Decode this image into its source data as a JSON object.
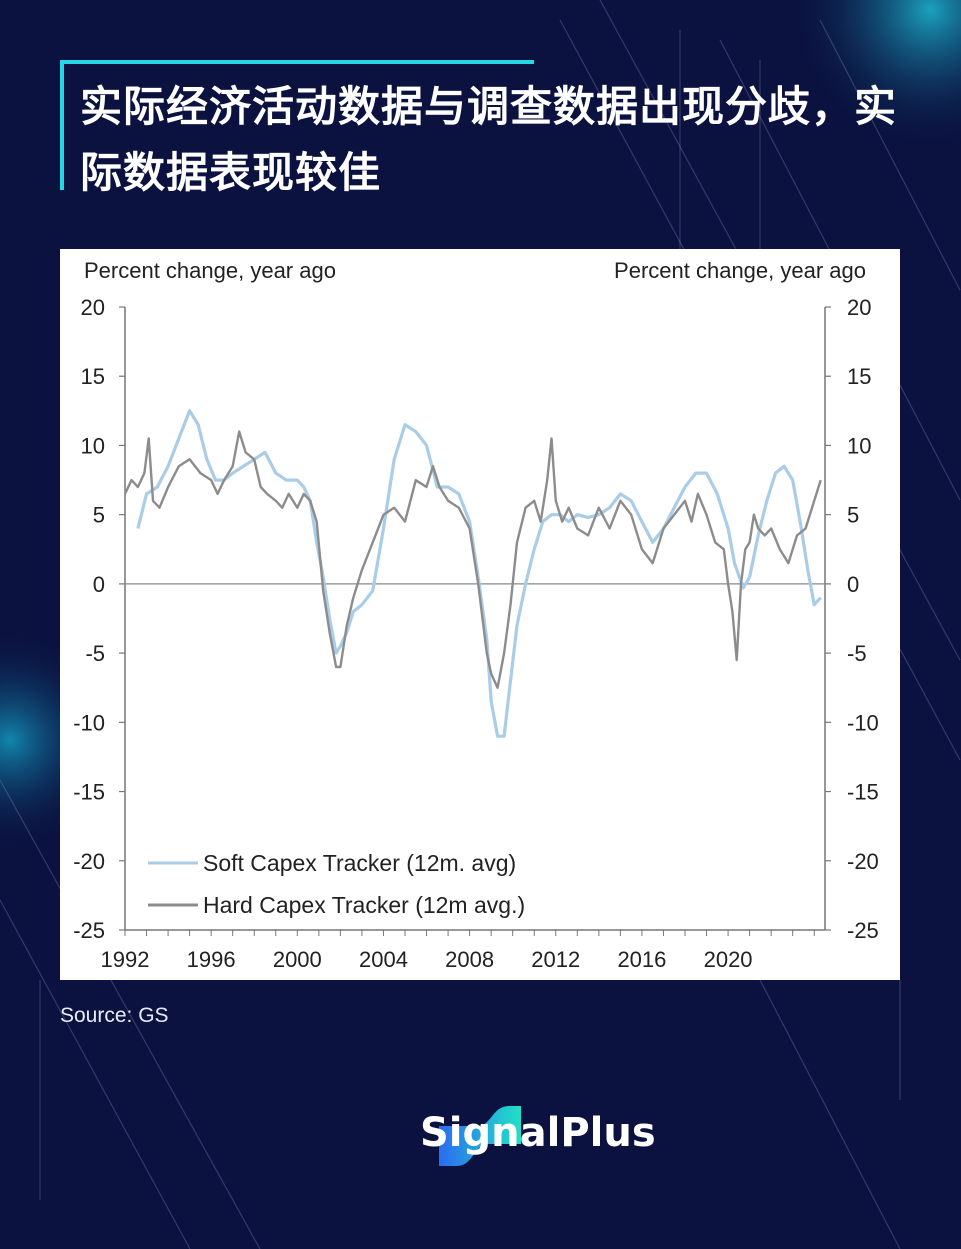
{
  "title": "实际经济活动数据与调查数据出现分歧，实际数据表现较佳",
  "source": "Source: GS",
  "brand": {
    "name": "SignalPlus",
    "accent": "#25d6e6"
  },
  "colors": {
    "soft": "#a9cde8",
    "hard": "#8c8c8c",
    "zero_line": "#888888",
    "axis": "#777777"
  },
  "chart_data": {
    "type": "line",
    "title": "",
    "ylabel_left": "Percent change, year ago",
    "ylabel_right": "Percent change, year ago",
    "ylim": [
      -25,
      20
    ],
    "yticks": [
      20,
      15,
      10,
      5,
      0,
      -5,
      -10,
      -15,
      -20,
      -25
    ],
    "ytick_labels": [
      "20",
      "15",
      "10",
      "5",
      "0",
      "-5",
      "-10",
      "-15",
      "-20",
      "-25"
    ],
    "xlim": [
      1992,
      2024.5
    ],
    "xticks": [
      1992,
      1996,
      2000,
      2004,
      2008,
      2012,
      2016,
      2020
    ],
    "xtick_labels": [
      "1992",
      "1996",
      "2000",
      "2004",
      "2008",
      "2012",
      "2016",
      "2020"
    ],
    "series": [
      {
        "name": "Soft Capex Tracker (12m. avg)",
        "label": "Soft Capex Tracker (12m. avg)",
        "color": "#a9cde8",
        "x": [
          1992.6,
          1993.0,
          1993.5,
          1994.0,
          1994.5,
          1995.0,
          1995.4,
          1995.8,
          1996.2,
          1996.6,
          1997.0,
          1997.5,
          1998.0,
          1998.5,
          1999.0,
          1999.5,
          2000.0,
          2000.3,
          2000.6,
          2000.9,
          2001.2,
          2001.5,
          2001.8,
          2002.0,
          2002.3,
          2002.6,
          2003.0,
          2003.5,
          2004.0,
          2004.5,
          2005.0,
          2005.5,
          2006.0,
          2006.5,
          2007.0,
          2007.5,
          2008.0,
          2008.4,
          2008.8,
          2009.0,
          2009.3,
          2009.6,
          2009.9,
          2010.2,
          2010.6,
          2011.0,
          2011.4,
          2011.8,
          2012.2,
          2012.6,
          2013.0,
          2013.5,
          2014.0,
          2014.5,
          2015.0,
          2015.5,
          2016.0,
          2016.5,
          2017.0,
          2017.5,
          2018.0,
          2018.5,
          2019.0,
          2019.5,
          2020.0,
          2020.3,
          2020.7,
          2021.0,
          2021.4,
          2021.8,
          2022.2,
          2022.6,
          2023.0,
          2023.4,
          2023.7,
          2024.0,
          2024.3
        ],
        "y": [
          4.0,
          6.5,
          7.0,
          8.5,
          10.5,
          12.5,
          11.5,
          9.0,
          7.5,
          7.5,
          8.0,
          8.5,
          9.0,
          9.5,
          8.0,
          7.5,
          7.5,
          7.0,
          6.0,
          3.0,
          0.5,
          -2.5,
          -5.0,
          -4.5,
          -3.5,
          -2.0,
          -1.5,
          -0.5,
          4.0,
          9.0,
          11.5,
          11.0,
          10.0,
          7.0,
          7.0,
          6.5,
          4.5,
          0.5,
          -4.0,
          -8.5,
          -11.0,
          -11.0,
          -7.0,
          -3.0,
          0.0,
          2.5,
          4.5,
          5.0,
          5.0,
          4.5,
          5.0,
          4.8,
          5.0,
          5.5,
          6.5,
          6.0,
          4.5,
          3.0,
          4.0,
          5.5,
          7.0,
          8.0,
          8.0,
          6.5,
          4.0,
          1.5,
          -0.3,
          0.5,
          3.5,
          6.0,
          8.0,
          8.5,
          7.5,
          4.0,
          1.0,
          -1.5,
          -1.0
        ]
      },
      {
        "name": "Hard Capex Tracker (12m avg.)",
        "label": "Hard Capex Tracker (12m avg.)",
        "color": "#8c8c8c",
        "x": [
          1992.0,
          1992.3,
          1992.6,
          1992.9,
          1993.1,
          1993.3,
          1993.6,
          1994.0,
          1994.5,
          1995.0,
          1995.5,
          1996.0,
          1996.3,
          1996.6,
          1997.0,
          1997.3,
          1997.6,
          1998.0,
          1998.3,
          1998.6,
          1999.0,
          1999.3,
          1999.6,
          2000.0,
          2000.3,
          2000.6,
          2000.9,
          2001.2,
          2001.5,
          2001.8,
          2002.0,
          2002.3,
          2002.6,
          2003.0,
          2003.5,
          2004.0,
          2004.5,
          2005.0,
          2005.5,
          2006.0,
          2006.3,
          2006.6,
          2007.0,
          2007.5,
          2008.0,
          2008.4,
          2008.8,
          2009.0,
          2009.3,
          2009.6,
          2009.9,
          2010.2,
          2010.6,
          2011.0,
          2011.3,
          2011.6,
          2011.8,
          2012.0,
          2012.3,
          2012.6,
          2013.0,
          2013.5,
          2014.0,
          2014.5,
          2015.0,
          2015.5,
          2016.0,
          2016.5,
          2017.0,
          2017.5,
          2018.0,
          2018.3,
          2018.6,
          2019.0,
          2019.4,
          2019.8,
          2020.0,
          2020.2,
          2020.4,
          2020.6,
          2020.8,
          2021.0,
          2021.2,
          2021.4,
          2021.7,
          2022.0,
          2022.4,
          2022.8,
          2023.2,
          2023.6,
          2024.0,
          2024.3
        ],
        "y": [
          6.5,
          7.5,
          7.0,
          8.0,
          10.5,
          6.0,
          5.5,
          7.0,
          8.5,
          9.0,
          8.0,
          7.5,
          6.5,
          7.5,
          8.5,
          11.0,
          9.5,
          9.0,
          7.0,
          6.5,
          6.0,
          5.5,
          6.5,
          5.5,
          6.5,
          6.0,
          4.5,
          -0.5,
          -3.5,
          -6.0,
          -6.0,
          -3.0,
          -1.0,
          1.0,
          3.0,
          5.0,
          5.5,
          4.5,
          7.5,
          7.0,
          8.5,
          7.0,
          6.0,
          5.5,
          4.0,
          0.0,
          -5.0,
          -6.5,
          -7.5,
          -5.0,
          -1.5,
          3.0,
          5.5,
          6.0,
          4.5,
          7.5,
          10.5,
          6.0,
          4.5,
          5.5,
          4.0,
          3.5,
          5.5,
          4.0,
          6.0,
          5.0,
          2.5,
          1.5,
          4.0,
          5.0,
          6.0,
          4.5,
          6.5,
          5.0,
          3.0,
          2.5,
          0.0,
          -2.0,
          -5.5,
          0.0,
          2.5,
          3.0,
          5.0,
          4.0,
          3.5,
          4.0,
          2.5,
          1.5,
          3.5,
          4.0,
          6.0,
          7.5
        ]
      }
    ],
    "legend_position": "bottom-left",
    "grid": false
  }
}
